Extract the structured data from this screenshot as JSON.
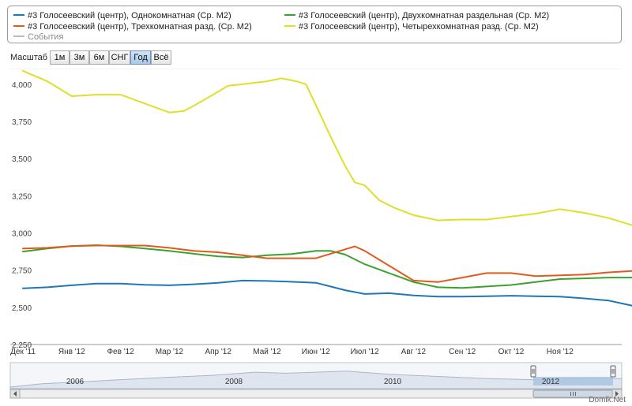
{
  "chart_data": {
    "type": "line",
    "x_labels": [
      "Дек '11",
      "Янв '12",
      "Фев '12",
      "Мар '12",
      "Апр '12",
      "Май '12",
      "Июн '12",
      "Июл '12",
      "Авг '12",
      "Сен '12",
      "Окт '12",
      "Ноя '12"
    ],
    "x_range": [
      0,
      12.5
    ],
    "y_ticks": [
      "2,250",
      "2,500",
      "2,750",
      "3,000",
      "3,250",
      "3,500",
      "3,750",
      "4,000"
    ],
    "ylim": [
      2250,
      4100
    ],
    "grid": true,
    "legend_position": "top",
    "series": [
      {
        "name": "#3 Голосеевский (центр), Однокомнатная (Ср. М2)",
        "color": "#1f77b4",
        "x": [
          0,
          0.5,
          1,
          1.5,
          2,
          2.5,
          3,
          3.5,
          4,
          4.5,
          5,
          5.5,
          6,
          6.3,
          6.6,
          7,
          7.5,
          8,
          8.5,
          9,
          9.5,
          10,
          10.5,
          11,
          11.5,
          12,
          12.5
        ],
        "y": [
          2628,
          2635,
          2648,
          2660,
          2660,
          2652,
          2648,
          2655,
          2665,
          2680,
          2677,
          2672,
          2665,
          2640,
          2615,
          2590,
          2595,
          2580,
          2572,
          2572,
          2575,
          2578,
          2575,
          2572,
          2560,
          2545,
          2510
        ]
      },
      {
        "name": "#3 Голосеевский (центр), Двухкомнатная раздельная (Ср. М2)",
        "color": "#3aa22f",
        "x": [
          0,
          0.5,
          1,
          1.5,
          2,
          2.5,
          3,
          3.5,
          4,
          4.5,
          5,
          5.5,
          6,
          6.3,
          6.6,
          7,
          7.5,
          8,
          8.5,
          9,
          9.5,
          10,
          10.5,
          11,
          11.5,
          12,
          12.5
        ],
        "y": [
          2875,
          2895,
          2912,
          2918,
          2910,
          2895,
          2880,
          2860,
          2842,
          2835,
          2850,
          2858,
          2880,
          2880,
          2855,
          2790,
          2730,
          2670,
          2635,
          2630,
          2640,
          2650,
          2670,
          2690,
          2695,
          2700,
          2700
        ]
      },
      {
        "name": "#3 Голосеевский (центр), Трехкомнатная разд. (Ср. М2)",
        "color": "#e05a1c",
        "x": [
          0,
          0.5,
          1,
          1.5,
          2,
          2.5,
          3,
          3.5,
          4,
          4.5,
          5,
          5.5,
          6,
          6.3,
          6.6,
          6.8,
          7,
          7.5,
          8,
          8.5,
          9,
          9.5,
          10,
          10.5,
          11,
          11.5,
          12,
          12.5
        ],
        "y": [
          2895,
          2900,
          2912,
          2915,
          2915,
          2915,
          2900,
          2880,
          2870,
          2850,
          2830,
          2830,
          2830,
          2860,
          2890,
          2910,
          2880,
          2780,
          2680,
          2670,
          2700,
          2730,
          2730,
          2710,
          2715,
          2720,
          2735,
          2745
        ]
      },
      {
        "name": "#3 Голосеевский (центр), Четырехкомнатная разд. (Ср. М2)",
        "color": "#dfdf2a",
        "x": [
          0,
          0.5,
          1,
          1.5,
          2,
          2.5,
          3,
          3.3,
          3.5,
          4,
          4.2,
          4.5,
          5,
          5.3,
          5.6,
          5.8,
          6,
          6.3,
          6.6,
          6.8,
          7,
          7.3,
          7.6,
          8,
          8.5,
          9,
          9.5,
          10,
          10.5,
          11,
          11.5,
          12,
          12.5
        ],
        "y": [
          4090,
          4020,
          3920,
          3930,
          3930,
          3870,
          3810,
          3820,
          3855,
          3950,
          3990,
          4000,
          4020,
          4040,
          4020,
          4000,
          3860,
          3650,
          3450,
          3340,
          3320,
          3220,
          3170,
          3120,
          3085,
          3090,
          3090,
          3110,
          3130,
          3160,
          3135,
          3100,
          3050
        ]
      }
    ]
  },
  "legend": {
    "events_label": "События"
  },
  "zoom": {
    "label": "Масштаб",
    "buttons": [
      "1м",
      "3м",
      "6м",
      "СНГ",
      "Год",
      "Всё"
    ],
    "active": "Год"
  },
  "navigator": {
    "year_labels": [
      "2006",
      "2008",
      "2010",
      "2012"
    ]
  },
  "watermark": "Domik.net",
  "credit": "Domik.Net"
}
